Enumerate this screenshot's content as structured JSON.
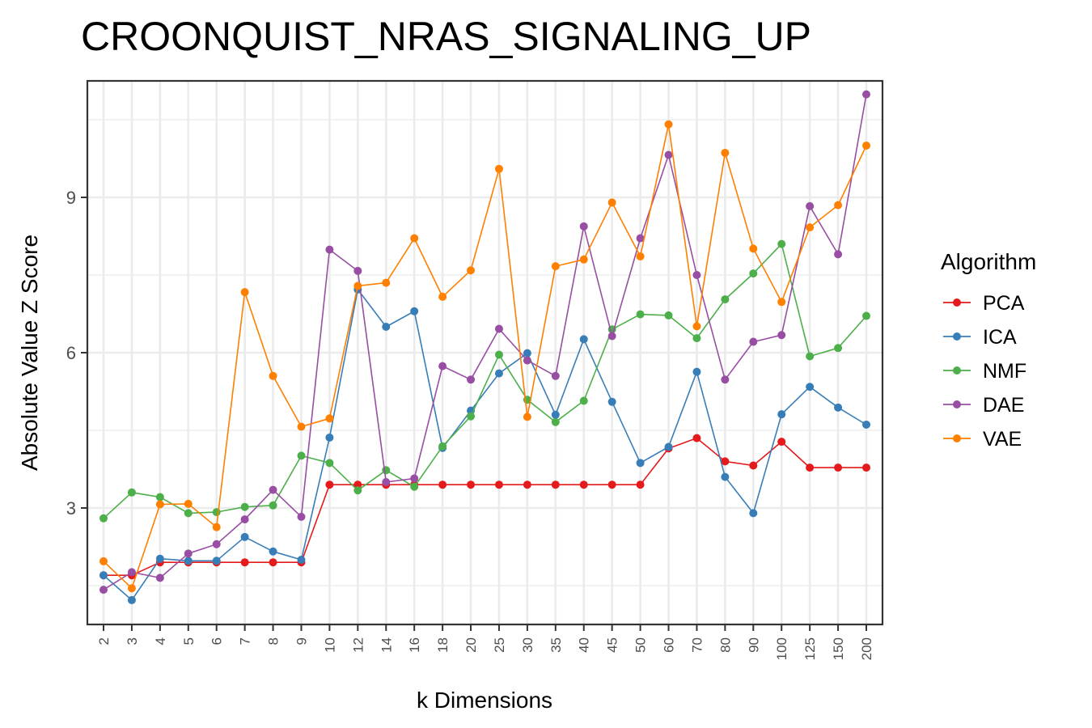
{
  "chart_data": {
    "type": "line",
    "title": "CROONQUIST_NRAS_SIGNALING_UP",
    "xlabel": "k Dimensions",
    "ylabel": "Absolute Value Z Score",
    "categories": [
      "2",
      "3",
      "4",
      "5",
      "6",
      "7",
      "8",
      "9",
      "10",
      "12",
      "14",
      "16",
      "18",
      "20",
      "25",
      "30",
      "35",
      "40",
      "45",
      "50",
      "60",
      "70",
      "80",
      "90",
      "100",
      "125",
      "150",
      "200"
    ],
    "y_ticks": [
      3,
      6,
      9
    ],
    "ylim": [
      0.75,
      11.25
    ],
    "grid": true,
    "legend": {
      "title": "Algorithm",
      "position": "right"
    },
    "series": [
      {
        "name": "PCA",
        "color": "#e41a1c",
        "values": [
          1.7,
          1.7,
          1.95,
          1.95,
          1.95,
          1.95,
          1.95,
          1.95,
          3.45,
          3.45,
          3.45,
          3.45,
          3.45,
          3.45,
          3.45,
          3.45,
          3.45,
          3.45,
          3.45,
          3.45,
          4.15,
          4.35,
          3.9,
          3.82,
          4.28,
          3.78,
          3.78,
          3.78
        ]
      },
      {
        "name": "ICA",
        "color": "#377eb8",
        "values": [
          1.7,
          1.22,
          2.02,
          1.98,
          1.98,
          2.44,
          2.16,
          2.0,
          4.36,
          7.22,
          6.5,
          6.8,
          4.16,
          4.88,
          5.6,
          5.99,
          4.8,
          6.26,
          5.05,
          3.87,
          4.18,
          5.63,
          3.6,
          2.9,
          4.81,
          5.34,
          4.94,
          4.61
        ]
      },
      {
        "name": "NMF",
        "color": "#4daf4a",
        "values": [
          2.8,
          3.3,
          3.21,
          2.9,
          2.92,
          3.02,
          3.05,
          4.01,
          3.87,
          3.34,
          3.73,
          3.41,
          4.19,
          4.77,
          5.96,
          5.09,
          4.66,
          5.07,
          6.45,
          6.74,
          6.72,
          6.28,
          7.03,
          7.53,
          8.1,
          5.93,
          6.09,
          6.71
        ]
      },
      {
        "name": "DAE",
        "color": "#984ea3",
        "values": [
          1.42,
          1.76,
          1.65,
          2.12,
          2.3,
          2.78,
          3.35,
          2.83,
          7.99,
          7.58,
          3.5,
          3.57,
          5.74,
          5.48,
          6.46,
          5.85,
          5.55,
          8.44,
          6.32,
          8.21,
          9.82,
          7.5,
          5.48,
          6.21,
          6.34,
          8.83,
          7.9,
          10.99
        ]
      },
      {
        "name": "VAE",
        "color": "#ff7f00",
        "values": [
          1.97,
          1.45,
          3.07,
          3.08,
          2.63,
          7.17,
          5.55,
          4.57,
          4.73,
          7.29,
          7.35,
          8.21,
          7.08,
          7.59,
          9.55,
          4.76,
          7.67,
          7.8,
          8.9,
          7.86,
          10.41,
          6.51,
          9.86,
          8.01,
          6.98,
          8.42,
          8.85,
          10.0
        ]
      }
    ]
  }
}
